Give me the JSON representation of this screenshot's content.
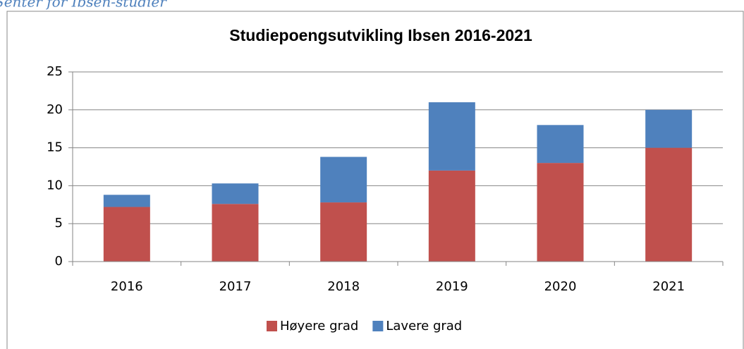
{
  "chart_data": {
    "type": "stacked-bar",
    "caption": "Senter for Ibsen-studier",
    "title": "Studiepoengsutvikling Ibsen 2016-2021",
    "categories": [
      "2016",
      "2017",
      "2018",
      "2019",
      "2020",
      "2021"
    ],
    "series": [
      {
        "name": "Høyere grad",
        "color": "#c0504d",
        "values": [
          7.2,
          7.6,
          7.8,
          12,
          13,
          15
        ]
      },
      {
        "name": "Lavere grad",
        "color": "#4f81bd",
        "values": [
          1.6,
          2.7,
          6.0,
          9,
          5,
          5
        ]
      }
    ],
    "ylim": [
      0,
      25
    ],
    "yticks": [
      0,
      5,
      10,
      15,
      20,
      25
    ],
    "grid": true,
    "legend": "bottom"
  }
}
